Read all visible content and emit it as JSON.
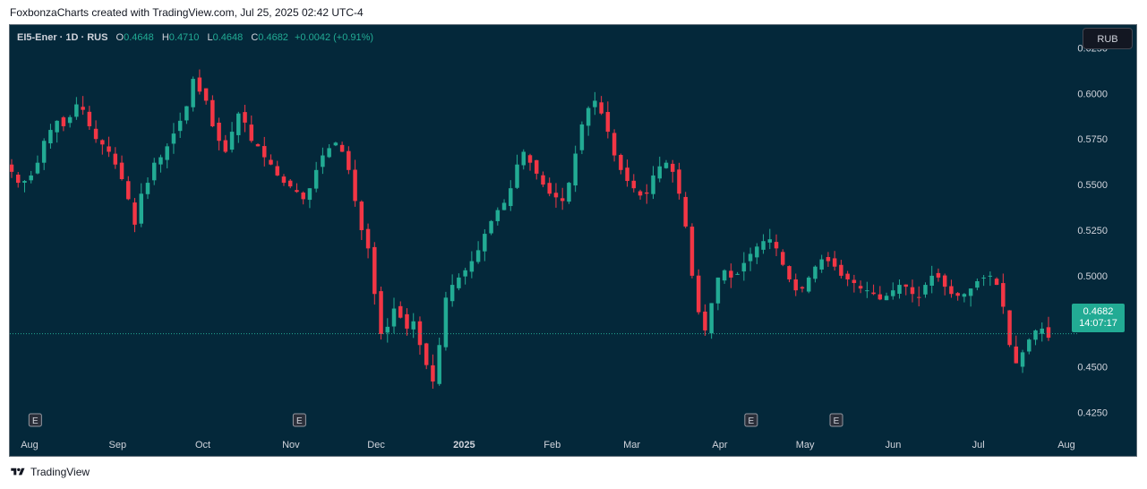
{
  "caption": "FoxbonzaCharts created with TradingView.com, Jul 25, 2025 02:42 UTC-4",
  "legend": {
    "symbol": "EI5-Ener · 1D · RUS",
    "open_label": "O",
    "open": "0.4648",
    "high_label": "H",
    "high": "0.4710",
    "low_label": "L",
    "low": "0.4648",
    "close_label": "C",
    "close": "0.4682",
    "change": "+0.0042 (+0.91%)"
  },
  "currency_button": "RUB",
  "last_price": {
    "value": "0.4682",
    "countdown": "14:07:17"
  },
  "footer": {
    "brand": "TradingView"
  },
  "colors": {
    "background": "#04283a",
    "up": "#22ab94",
    "down": "#f23645",
    "axis_text": "#d1d4dc"
  },
  "event_marker_label": "E",
  "chart_data": {
    "type": "candlestick",
    "title": "",
    "ylim": [
      0.4125,
      0.6375
    ],
    "y_ticks": [
      "0.6250",
      "0.6000",
      "0.5750",
      "0.5500",
      "0.5250",
      "0.5000",
      "0.4750",
      "0.4500",
      "0.4250"
    ],
    "x_ticks": [
      {
        "label": "Aug",
        "day": 0
      },
      {
        "label": "Sep",
        "day": 31
      },
      {
        "label": "Oct",
        "day": 61
      },
      {
        "label": "Nov",
        "day": 92
      },
      {
        "label": "Dec",
        "day": 122
      },
      {
        "label": "2025",
        "day": 153
      },
      {
        "label": "Feb",
        "day": 184
      },
      {
        "label": "Mar",
        "day": 212
      },
      {
        "label": "Apr",
        "day": 243
      },
      {
        "label": "May",
        "day": 273
      },
      {
        "label": "Jun",
        "day": 304
      },
      {
        "label": "Jul",
        "day": 334
      },
      {
        "label": "Aug",
        "day": 365
      }
    ],
    "events_days": [
      2,
      95,
      254,
      284
    ],
    "last_close": 0.4682,
    "closes": [
      0.557,
      0.551,
      0.552,
      0.555,
      0.562,
      0.574,
      0.58,
      0.585,
      0.582,
      0.587,
      0.594,
      0.591,
      0.582,
      0.575,
      0.572,
      0.568,
      0.561,
      0.553,
      0.542,
      0.528,
      0.545,
      0.551,
      0.562,
      0.565,
      0.571,
      0.578,
      0.585,
      0.593,
      0.608,
      0.601,
      0.596,
      0.582,
      0.574,
      0.568,
      0.579,
      0.589,
      0.584,
      0.574,
      0.571,
      0.565,
      0.561,
      0.555,
      0.551,
      0.549,
      0.546,
      0.542,
      0.548,
      0.558,
      0.566,
      0.57,
      0.573,
      0.568,
      0.558,
      0.541,
      0.525,
      0.515,
      0.49,
      0.468,
      0.472,
      0.482,
      0.477,
      0.471,
      0.475,
      0.462,
      0.451,
      0.442,
      0.462,
      0.488,
      0.495,
      0.499,
      0.503,
      0.508,
      0.514,
      0.523,
      0.53,
      0.536,
      0.54,
      0.548,
      0.561,
      0.568,
      0.562,
      0.556,
      0.55,
      0.545,
      0.543,
      0.541,
      0.551,
      0.567,
      0.583,
      0.592,
      0.596,
      0.589,
      0.579,
      0.566,
      0.558,
      0.552,
      0.548,
      0.544,
      0.545,
      0.555,
      0.56,
      0.562,
      0.557,
      0.545,
      0.527,
      0.5,
      0.48,
      0.47,
      0.485,
      0.499,
      0.503,
      0.499,
      0.501,
      0.507,
      0.512,
      0.516,
      0.519,
      0.52,
      0.515,
      0.506,
      0.498,
      0.492,
      0.493,
      0.499,
      0.505,
      0.509,
      0.508,
      0.505,
      0.5,
      0.498,
      0.496,
      0.493,
      0.492,
      0.49,
      0.487,
      0.489,
      0.492,
      0.495,
      0.494,
      0.49,
      0.488,
      0.495,
      0.5,
      0.499,
      0.494,
      0.49,
      0.489,
      0.49,
      0.493,
      0.497,
      0.499,
      0.5,
      0.495,
      0.483,
      0.462,
      0.452,
      0.458,
      0.465,
      0.47,
      0.471,
      0.466
    ]
  }
}
